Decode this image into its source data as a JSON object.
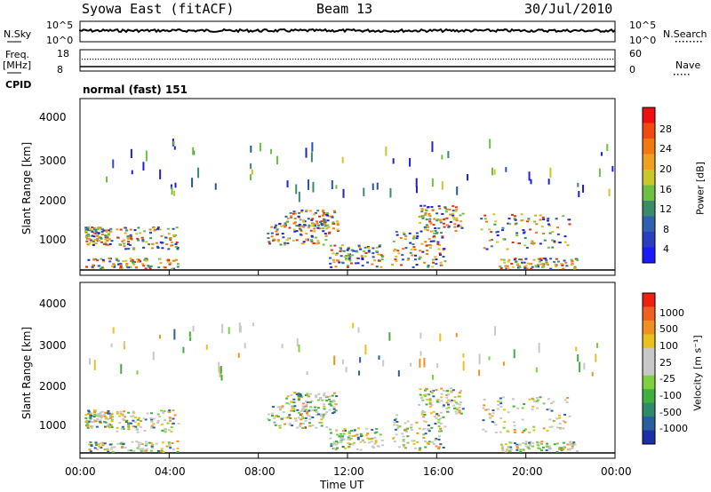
{
  "header": {
    "station": "Syowa East (fitACF)",
    "beam": "Beam 13",
    "date": "30/Jul/2010"
  },
  "noise_panel": {
    "left_label": "N.Sky",
    "right_label": "N.Search",
    "left_ticks": [
      "10^5",
      "10^0"
    ],
    "right_ticks": [
      "10^5",
      "10^0"
    ]
  },
  "freq_panel": {
    "left_label_line1": "Freq.",
    "left_label_line2": "[MHz]",
    "left_ticks": [
      "18",
      "8"
    ],
    "right_label": "Nave",
    "right_ticks": [
      "60",
      "0"
    ]
  },
  "cpid": {
    "label": "CPID",
    "value": "normal (fast) 151"
  },
  "chart_data": [
    {
      "type": "heatmap",
      "name": "Power",
      "ylabel": "Slant Range [km]",
      "ylim": [
        180,
        4600
      ],
      "yticks": [
        "1000",
        "2000",
        "3000",
        "4000"
      ],
      "colorbar_label": "Power [dB]",
      "colorbar_ticks": [
        "28",
        "24",
        "20",
        "16",
        "12",
        "8",
        "4"
      ],
      "colorbar_colors": [
        "#1a1aff",
        "#2a3fc0",
        "#3060b0",
        "#3b8a6b",
        "#6fbf45",
        "#c8c828",
        "#f0a020",
        "#f07a10",
        "#f04a10",
        "#ee1010"
      ],
      "grid": false
    },
    {
      "type": "heatmap",
      "name": "Velocity",
      "ylabel": "Slant Range [km]",
      "ylim": [
        180,
        4600
      ],
      "yticks": [
        "1000",
        "2000",
        "3000",
        "4000"
      ],
      "colorbar_label": "Velocity [m s⁻¹]",
      "colorbar_ticks": [
        "1000",
        "500",
        "100",
        "25",
        "-25",
        "-100",
        "-500",
        "-1000"
      ],
      "colorbar_colors": [
        "#1b2fa8",
        "#2a5f9e",
        "#2f8a6a",
        "#3fb040",
        "#7ed040",
        "#c8c8c8",
        "#c8c8c8",
        "#e8c020",
        "#f09020",
        "#f06020",
        "#ee2010"
      ],
      "grid": false
    }
  ],
  "time_axis": {
    "ticks": [
      "00:00",
      "04:00",
      "08:00",
      "12:00",
      "16:00",
      "20:00",
      "00:00"
    ],
    "label": "Time UT"
  }
}
